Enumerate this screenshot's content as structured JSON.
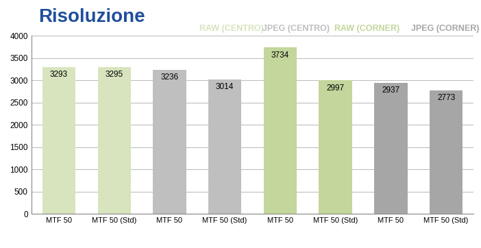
{
  "chart_data": {
    "type": "bar",
    "title": "Risoluzione",
    "categories": [
      "MTF 50",
      "MTF 50 (Std)",
      "MTF 50",
      "MTF 50 (Std)",
      "MTF 50",
      "MTF 50 (Std)",
      "MTF 50",
      "MTF 50 (Std)"
    ],
    "series": [
      {
        "name": "RAW (CENTRO)",
        "color": "#d7e4bd",
        "values": [
          3293,
          3295,
          null,
          null,
          null,
          null,
          null,
          null
        ]
      },
      {
        "name": "JPEG (CENTRO)",
        "color": "#bfbfbf",
        "values": [
          null,
          null,
          3236,
          3014,
          null,
          null,
          null,
          null
        ]
      },
      {
        "name": "RAW (CORNER)",
        "color": "#c3d69b",
        "values": [
          null,
          null,
          null,
          null,
          3734,
          2997,
          null,
          null
        ]
      },
      {
        "name": "JPEG (CORNER)",
        "color": "#a6a6a6",
        "values": [
          null,
          null,
          null,
          null,
          null,
          null,
          2937,
          2773
        ]
      }
    ],
    "ylim": [
      0,
      4000
    ],
    "yticks": [
      0,
      500,
      1000,
      1500,
      2000,
      2500,
      3000,
      3500,
      4000
    ],
    "grid": true,
    "data_labels": true
  }
}
